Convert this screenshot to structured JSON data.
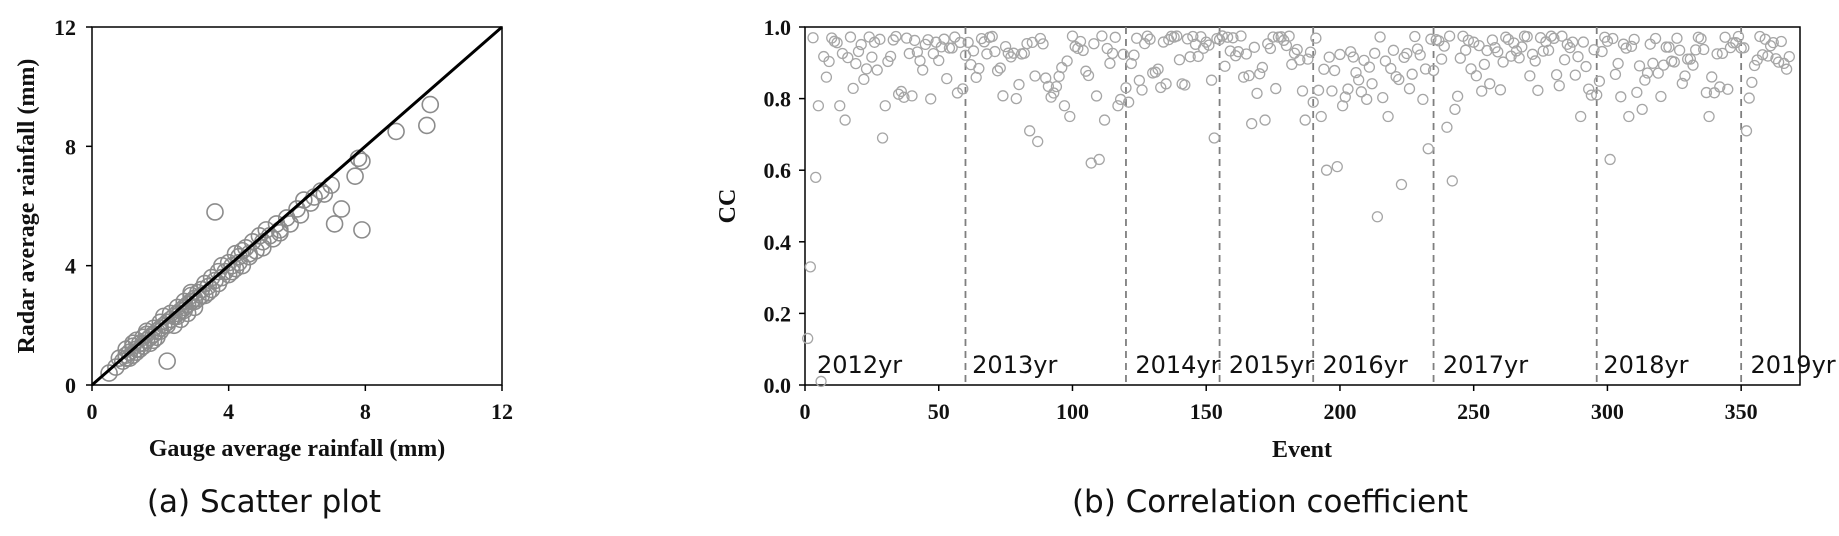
{
  "chart_data": [
    {
      "type": "scatter",
      "caption": "(a) Scatter plot",
      "xlabel": "Gauge average rainfall (mm)",
      "ylabel": "Radar average rainfall (mm)",
      "xlim": [
        0,
        12
      ],
      "ylim": [
        0,
        12
      ],
      "xticks": [
        "0",
        "4",
        "8",
        "12"
      ],
      "yticks": [
        "0",
        "4",
        "8",
        "12"
      ],
      "reference_line": {
        "from": [
          0,
          0
        ],
        "to": [
          12,
          12
        ]
      },
      "marker": "hollow circle",
      "colors": {
        "marker": "#8c8c8c",
        "line": "#000000"
      },
      "points": [
        [
          0.5,
          0.4
        ],
        [
          0.7,
          0.6
        ],
        [
          0.8,
          0.9
        ],
        [
          0.9,
          0.8
        ],
        [
          1.0,
          1.0
        ],
        [
          1.0,
          1.2
        ],
        [
          1.1,
          0.9
        ],
        [
          1.1,
          1.1
        ],
        [
          1.2,
          1.3
        ],
        [
          1.2,
          1.0
        ],
        [
          1.3,
          1.2
        ],
        [
          1.3,
          1.5
        ],
        [
          1.4,
          1.4
        ],
        [
          1.4,
          1.2
        ],
        [
          1.5,
          1.6
        ],
        [
          1.5,
          1.3
        ],
        [
          1.6,
          1.5
        ],
        [
          1.6,
          1.8
        ],
        [
          1.7,
          1.6
        ],
        [
          1.7,
          1.4
        ],
        [
          1.8,
          1.9
        ],
        [
          1.8,
          1.7
        ],
        [
          1.9,
          1.8
        ],
        [
          1.9,
          1.6
        ],
        [
          2.0,
          2.1
        ],
        [
          2.0,
          1.8
        ],
        [
          2.1,
          2.0
        ],
        [
          2.1,
          2.3
        ],
        [
          2.2,
          2.1
        ],
        [
          2.2,
          0.8
        ],
        [
          2.3,
          2.4
        ],
        [
          2.3,
          2.2
        ],
        [
          2.4,
          2.3
        ],
        [
          2.4,
          2.0
        ],
        [
          2.5,
          2.6
        ],
        [
          2.5,
          2.4
        ],
        [
          2.6,
          2.5
        ],
        [
          2.6,
          2.2
        ],
        [
          2.7,
          2.8
        ],
        [
          2.7,
          2.6
        ],
        [
          2.8,
          2.7
        ],
        [
          2.8,
          2.4
        ],
        [
          2.9,
          3.0
        ],
        [
          2.9,
          2.8
        ],
        [
          3.0,
          2.9
        ],
        [
          3.0,
          2.6
        ],
        [
          3.1,
          3.1
        ],
        [
          3.1,
          2.9
        ],
        [
          3.2,
          3.2
        ],
        [
          3.3,
          3.4
        ],
        [
          3.3,
          3.0
        ],
        [
          3.4,
          3.3
        ],
        [
          3.5,
          3.6
        ],
        [
          3.5,
          3.2
        ],
        [
          3.6,
          5.8
        ],
        [
          3.6,
          3.5
        ],
        [
          3.7,
          3.8
        ],
        [
          3.8,
          3.6
        ],
        [
          3.9,
          3.8
        ],
        [
          4.0,
          4.1
        ],
        [
          4.0,
          3.7
        ],
        [
          4.1,
          4.0
        ],
        [
          4.2,
          4.4
        ],
        [
          4.2,
          3.9
        ],
        [
          4.3,
          4.3
        ],
        [
          4.4,
          4.5
        ],
        [
          4.4,
          4.0
        ],
        [
          4.5,
          4.6
        ],
        [
          4.6,
          4.4
        ],
        [
          4.7,
          4.8
        ],
        [
          4.8,
          4.5
        ],
        [
          4.9,
          5.0
        ],
        [
          5.0,
          4.8
        ],
        [
          5.1,
          5.2
        ],
        [
          5.2,
          5.0
        ],
        [
          5.3,
          4.9
        ],
        [
          5.4,
          5.4
        ],
        [
          5.5,
          5.2
        ],
        [
          5.7,
          5.6
        ],
        [
          5.8,
          5.4
        ],
        [
          6.0,
          5.9
        ],
        [
          6.1,
          5.7
        ],
        [
          6.2,
          6.2
        ],
        [
          6.4,
          6.1
        ],
        [
          6.5,
          6.3
        ],
        [
          6.7,
          6.5
        ],
        [
          6.8,
          6.4
        ],
        [
          7.0,
          6.7
        ],
        [
          7.1,
          5.4
        ],
        [
          7.3,
          5.9
        ],
        [
          7.7,
          7.0
        ],
        [
          7.8,
          7.6
        ],
        [
          7.9,
          7.5
        ],
        [
          7.9,
          5.2
        ],
        [
          8.9,
          8.5
        ],
        [
          9.8,
          8.7
        ],
        [
          9.9,
          9.4
        ],
        [
          1.0,
          0.9
        ],
        [
          1.3,
          1.1
        ],
        [
          1.5,
          1.4
        ],
        [
          1.8,
          1.5
        ],
        [
          2.0,
          1.9
        ],
        [
          2.2,
          2.0
        ],
        [
          2.5,
          2.3
        ],
        [
          2.7,
          2.5
        ],
        [
          3.0,
          2.8
        ],
        [
          3.2,
          3.0
        ],
        [
          3.4,
          3.1
        ],
        [
          3.7,
          3.4
        ],
        [
          4.1,
          3.8
        ],
        [
          4.3,
          4.1
        ],
        [
          4.6,
          4.3
        ],
        [
          5.0,
          4.6
        ],
        [
          5.5,
          5.1
        ],
        [
          3.8,
          4.0
        ],
        [
          2.9,
          3.1
        ],
        [
          1.6,
          1.7
        ],
        [
          1.2,
          1.4
        ]
      ]
    },
    {
      "type": "scatter",
      "caption": "(b) Correlation coefficient",
      "xlabel": "Event",
      "ylabel": "CC",
      "xlim": [
        0,
        372
      ],
      "ylim": [
        0.0,
        1.0
      ],
      "xticks": [
        "0",
        "50",
        "100",
        "150",
        "200",
        "250",
        "300",
        "350"
      ],
      "yticks": [
        "0.0",
        "0.2",
        "0.4",
        "0.6",
        "0.8",
        "1.0"
      ],
      "marker": "hollow circle",
      "colors": {
        "marker": "#a6a6a6",
        "divider": "#7f7f7f"
      },
      "year_dividers": [
        60,
        120,
        155,
        190,
        235,
        296,
        350
      ],
      "year_labels": [
        {
          "label": "2012yr",
          "x": 3
        },
        {
          "label": "2013yr",
          "x": 61
        },
        {
          "label": "2014yr",
          "x": 122
        },
        {
          "label": "2015yr",
          "x": 157
        },
        {
          "label": "2016yr",
          "x": 192
        },
        {
          "label": "2017yr",
          "x": 237
        },
        {
          "label": "2018yr",
          "x": 297
        },
        {
          "label": "2019yr",
          "x": 352
        }
      ],
      "outliers": [
        [
          1,
          0.13
        ],
        [
          2,
          0.33
        ],
        [
          3,
          0.97
        ],
        [
          4,
          0.58
        ],
        [
          5,
          0.78
        ],
        [
          6,
          0.01
        ],
        [
          8,
          0.86
        ],
        [
          11,
          0.96
        ],
        [
          13,
          0.78
        ],
        [
          15,
          0.74
        ],
        [
          29,
          0.69
        ],
        [
          30,
          0.78
        ],
        [
          36,
          0.82
        ],
        [
          79,
          0.8
        ],
        [
          84,
          0.71
        ],
        [
          87,
          0.68
        ],
        [
          97,
          0.78
        ],
        [
          99,
          0.75
        ],
        [
          107,
          0.62
        ],
        [
          110,
          0.63
        ],
        [
          112,
          0.74
        ],
        [
          117,
          0.78
        ],
        [
          121,
          0.79
        ],
        [
          153,
          0.69
        ],
        [
          167,
          0.73
        ],
        [
          172,
          0.74
        ],
        [
          187,
          0.74
        ],
        [
          190,
          0.79
        ],
        [
          193,
          0.75
        ],
        [
          195,
          0.6
        ],
        [
          199,
          0.61
        ],
        [
          201,
          0.78
        ],
        [
          214,
          0.47
        ],
        [
          218,
          0.75
        ],
        [
          223,
          0.56
        ],
        [
          233,
          0.66
        ],
        [
          240,
          0.72
        ],
        [
          242,
          0.57
        ],
        [
          243,
          0.77
        ],
        [
          290,
          0.75
        ],
        [
          301,
          0.63
        ],
        [
          308,
          0.75
        ],
        [
          313,
          0.77
        ],
        [
          338,
          0.75
        ],
        [
          352,
          0.71
        ]
      ]
    }
  ]
}
